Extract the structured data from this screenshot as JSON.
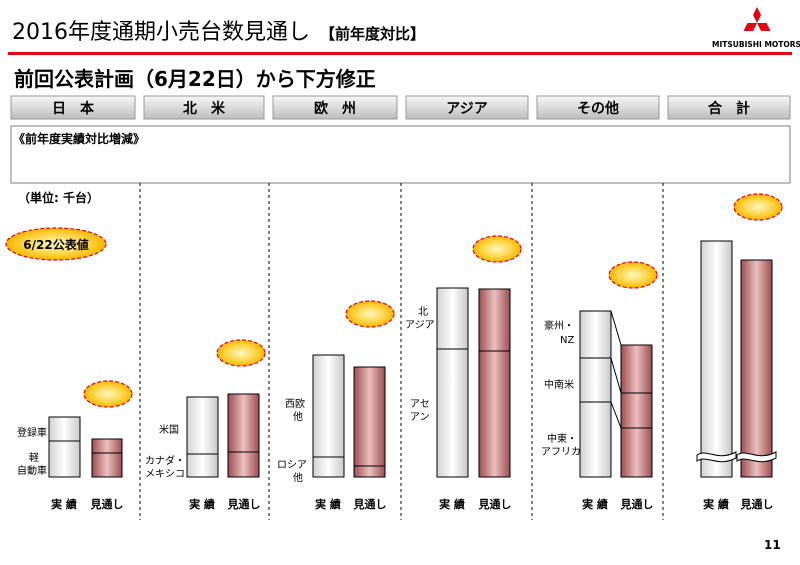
{
  "header": {
    "title": "2016年度通期小売台数見通し",
    "title_sub": "【前年度対比】",
    "brand_name": "MITSUBISHI MOTORS",
    "subtitle": "前回公表計画（6月22日）から下方修正",
    "page_number": "11"
  },
  "colors": {
    "accent_red": "#e60012",
    "revised_bar": "#a85c60",
    "actual_bar": "#f2f2f2",
    "bubble": "#ffcc33"
  },
  "regions": [
    {
      "label": "日　本"
    },
    {
      "label": "北　米"
    },
    {
      "label": "欧　州"
    },
    {
      "label": "アジア"
    },
    {
      "label": "その他"
    },
    {
      "label": "合　計"
    }
  ],
  "textbox": {
    "label": "《前年度実績対比増減》"
  },
  "unit_label": "（単位: 千台）",
  "badge": {
    "label": "6/22公表値"
  },
  "bar_labels": {
    "actual": "実 績",
    "forecast": "見通し"
  },
  "chart_data": {
    "type": "bar",
    "stacked": true,
    "ylabel": "（単位: 千台）",
    "values_readable": false,
    "categories": [
      "日本",
      "北米",
      "欧州",
      "アジア",
      "その他",
      "合計"
    ],
    "series": [
      {
        "name": "実 績"
      },
      {
        "name": "見通し"
      }
    ],
    "segment_labels": {
      "日本": [
        "登録車",
        "軽自動車"
      ],
      "北米": [
        "米国",
        "カナダ・メキシコ"
      ],
      "欧州": [
        "西欧他",
        "ロシア他"
      ],
      "アジア": [
        "北アジア",
        "アセアン"
      ],
      "その他": [
        "豪州・NZ",
        "中南米",
        "中東・アフリカ"
      ],
      "合計": []
    }
  },
  "side_labels": {
    "japan_1": "登録車",
    "japan_2a": "軽",
    "japan_2b": "自動車",
    "na_1": "米国",
    "na_2a": "カナダ・",
    "na_2b": "メキシコ",
    "eu_1a": "西欧",
    "eu_1b": "他",
    "eu_2a": "ロシア",
    "eu_2b": "他",
    "asia_1a": "北",
    "asia_1b": "アジア",
    "asia_2a": "アセ",
    "asia_2b": "アン",
    "other_1a": "豪州・",
    "other_1b": "NZ",
    "other_2": "中南米",
    "other_3a": "中東・",
    "other_3b": "アフリカ"
  }
}
